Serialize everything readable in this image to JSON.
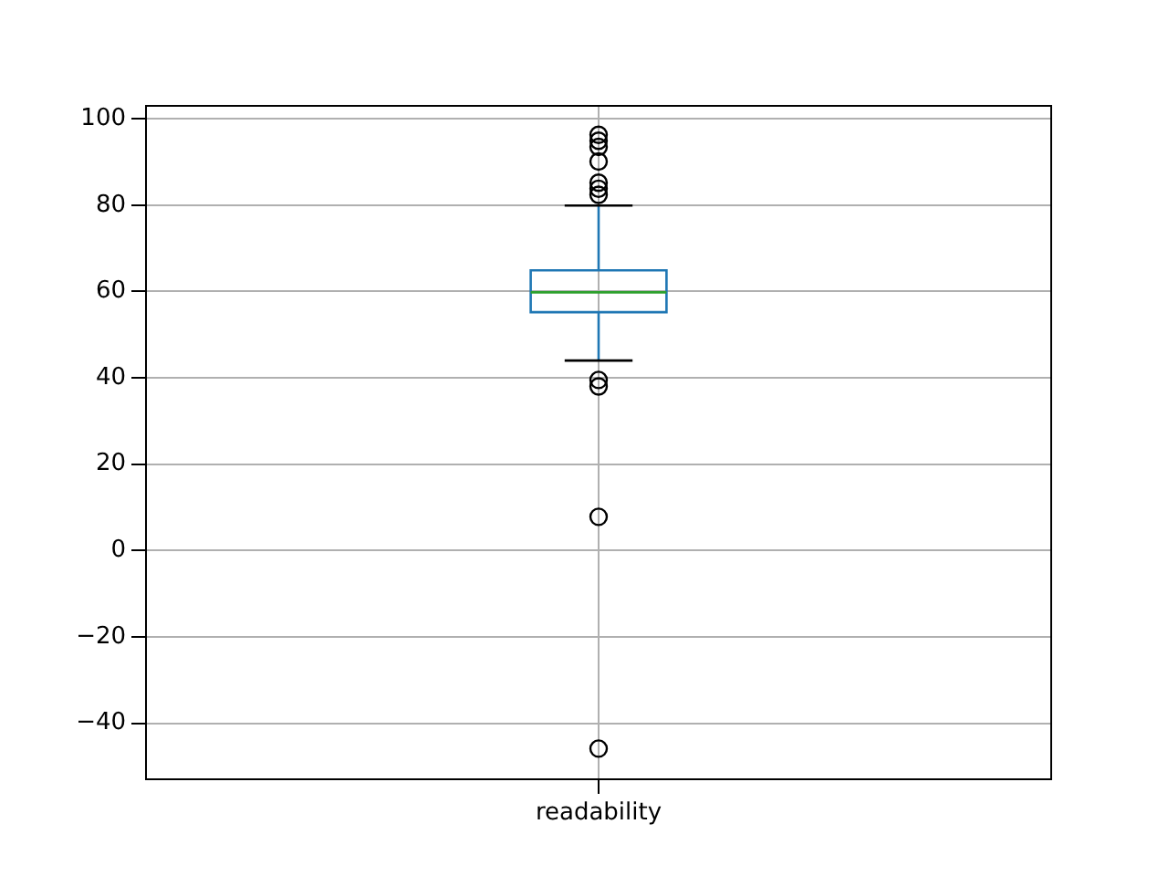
{
  "chart_data": {
    "type": "box",
    "categories": [
      "readability"
    ],
    "series": [
      {
        "color": "#1f77b4",
        "boxes": [
          {
            "low": 44,
            "q1": 55.2,
            "median": 59.8,
            "q3": 64.9,
            "high": 79.9,
            "outliers": [
              96.3,
              94.9,
              93.5,
              90.1,
              85.2,
              83.8,
              82.4,
              39.5,
              38,
              7.8,
              -45.9
            ]
          }
        ]
      }
    ],
    "ylim": [
      -53,
      103
    ],
    "yticks": [
      -40,
      -20,
      0,
      20,
      40,
      60,
      80,
      100
    ],
    "grid": true,
    "legend": false
  }
}
